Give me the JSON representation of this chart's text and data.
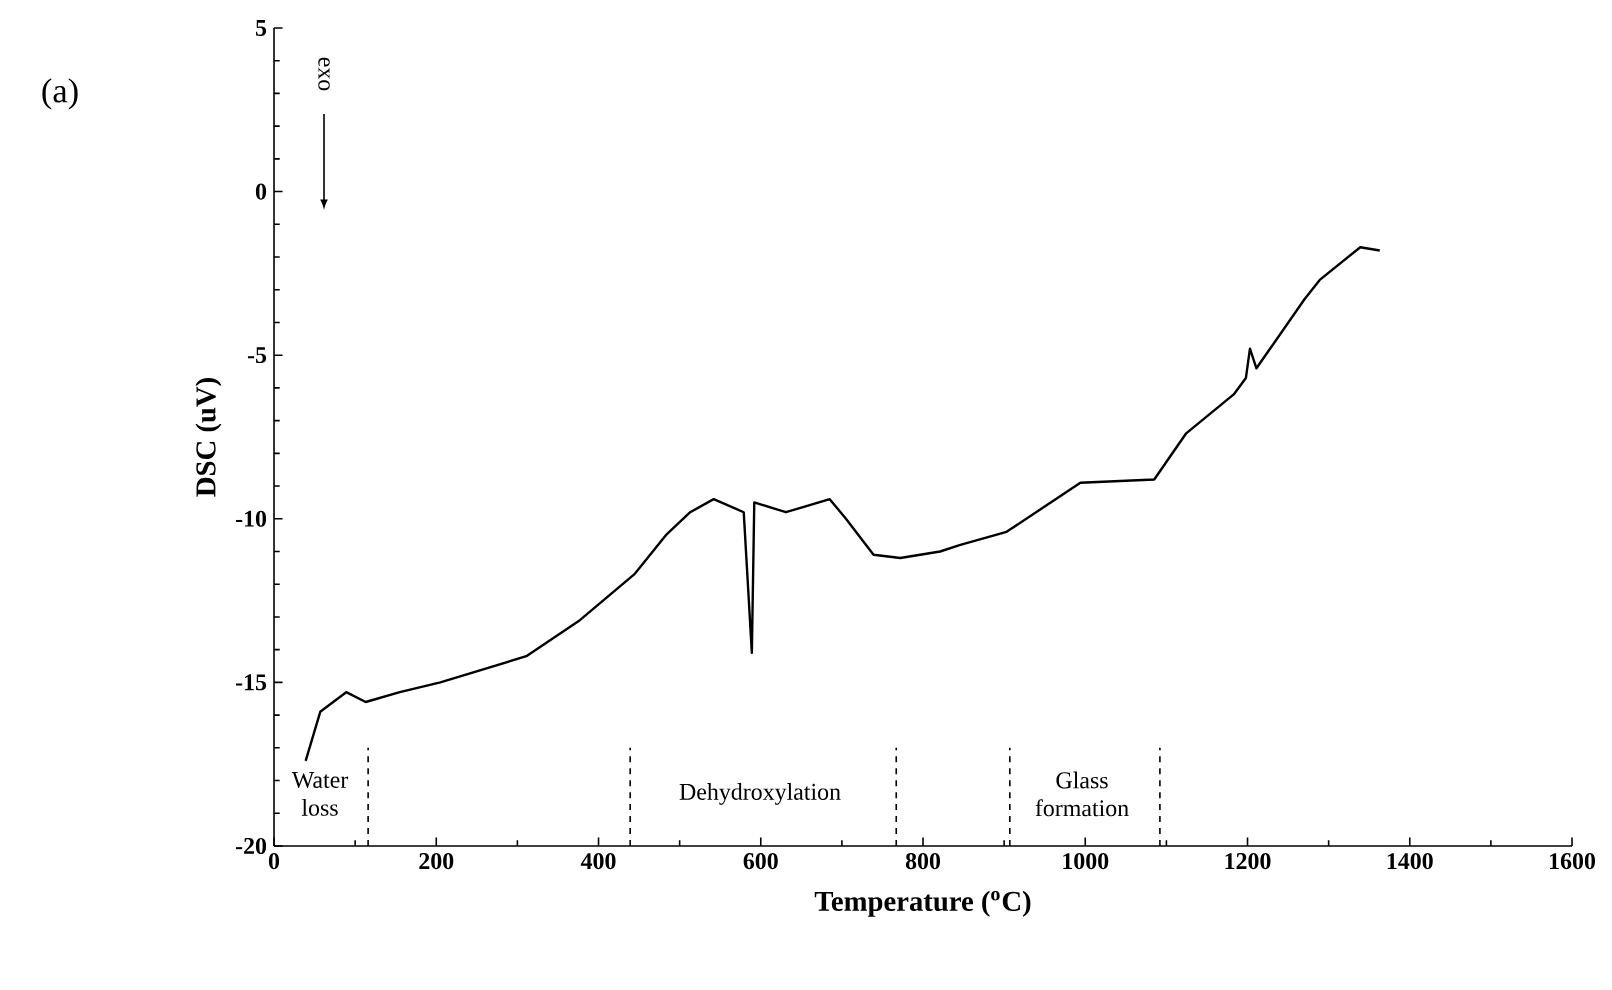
{
  "chart_data": {
    "type": "line",
    "xlabel": "Temperature ($^{o}$C)",
    "ylabel": "DSC (uV)",
    "x": [
      39,
      57,
      89,
      113,
      155,
      205,
      311,
      377,
      444,
      483,
      513,
      542,
      579,
      589,
      592,
      631,
      685,
      705,
      739,
      772,
      821,
      846,
      903,
      994,
      1085,
      1124,
      1183,
      1198,
      1203,
      1211,
      1270,
      1289,
      1339,
      1363
    ],
    "values": [
      -17.4,
      -15.9,
      -15.3,
      -15.6,
      -15.3,
      -15.0,
      -14.2,
      -13.1,
      -11.7,
      -10.5,
      -9.8,
      -9.4,
      -9.8,
      -14.1,
      -9.5,
      -9.8,
      -9.4,
      -10.0,
      -11.1,
      -11.2,
      -11.0,
      -10.8,
      -10.4,
      -8.9,
      -8.8,
      -7.4,
      -6.2,
      -5.7,
      -4.8,
      -5.4,
      -3.3,
      -2.7,
      -1.7,
      -1.8
    ],
    "color": "#000000",
    "xlim": [
      0,
      1600
    ],
    "xticks": [
      0,
      200,
      400,
      600,
      800,
      1000,
      1200,
      1400,
      1600
    ],
    "ylim": [
      -20,
      5
    ],
    "yticks": [
      -20,
      -15,
      -10,
      -5,
      0,
      5
    ],
    "marker": "none",
    "line_style": "solid",
    "ref_lines": [
      {
        "axis": "x",
        "value": 116,
        "line_style": "dashed"
      },
      {
        "axis": "x",
        "value": 439,
        "line_style": "dashed"
      },
      {
        "axis": "x",
        "value": 767,
        "line_style": "dashed"
      },
      {
        "axis": "x",
        "value": 907,
        "line_style": "dashed"
      },
      {
        "axis": "x",
        "value": 1092,
        "line_style": "dashed"
      }
    ],
    "annotations": [
      "Water loss",
      "Dehydroxylation",
      "Glass formation",
      "exo",
      "(a)"
    ]
  }
}
